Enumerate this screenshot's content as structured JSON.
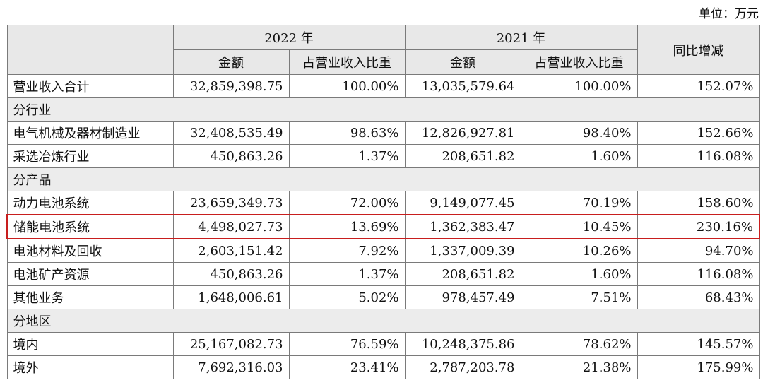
{
  "unit": "单位：万元",
  "header": {
    "year_2022": "2022 年",
    "year_2021": "2021 年",
    "yoy": "同比增减",
    "amount": "金额",
    "ratio": "占营业收入比重"
  },
  "rows": [
    {
      "type": "data",
      "label": "营业收入合计",
      "a22": "32,859,398.75",
      "r22": "100.00%",
      "a21": "13,035,579.64",
      "r21": "100.00%",
      "yoy": "152.07%"
    },
    {
      "type": "section",
      "label": "分行业"
    },
    {
      "type": "data",
      "label": "电气机械及器材制造业",
      "a22": "32,408,535.49",
      "r22": "98.63%",
      "a21": "12,826,927.81",
      "r21": "98.40%",
      "yoy": "152.66%"
    },
    {
      "type": "data",
      "label": "采选冶炼行业",
      "a22": "450,863.26",
      "r22": "1.37%",
      "a21": "208,651.82",
      "r21": "1.60%",
      "yoy": "116.08%"
    },
    {
      "type": "section",
      "label": "分产品"
    },
    {
      "type": "data",
      "label": "动力电池系统",
      "a22": "23,659,349.73",
      "r22": "72.00%",
      "a21": "9,149,077.45",
      "r21": "70.19%",
      "yoy": "158.60%"
    },
    {
      "type": "data",
      "label": "储能电池系统",
      "a22": "4,498,027.73",
      "r22": "13.69%",
      "a21": "1,362,383.47",
      "r21": "10.45%",
      "yoy": "230.16%",
      "highlight": true
    },
    {
      "type": "data",
      "label": "电池材料及回收",
      "a22": "2,603,151.42",
      "r22": "7.92%",
      "a21": "1,337,009.39",
      "r21": "10.26%",
      "yoy": "94.70%"
    },
    {
      "type": "data",
      "label": "电池矿产资源",
      "a22": "450,863.26",
      "r22": "1.37%",
      "a21": "208,651.82",
      "r21": "1.60%",
      "yoy": "116.08%"
    },
    {
      "type": "data",
      "label": "其他业务",
      "a22": "1,648,006.61",
      "r22": "5.02%",
      "a21": "978,457.49",
      "r21": "7.51%",
      "yoy": "68.43%"
    },
    {
      "type": "section",
      "label": "分地区"
    },
    {
      "type": "data",
      "label": "境内",
      "a22": "25,167,082.73",
      "r22": "76.59%",
      "a21": "10,248,375.86",
      "r21": "78.62%",
      "yoy": "145.57%"
    },
    {
      "type": "data",
      "label": "境外",
      "a22": "7,692,316.03",
      "r22": "23.41%",
      "a21": "2,787,203.78",
      "r21": "21.38%",
      "yoy": "175.99%"
    }
  ],
  "colors": {
    "highlight_border": "#c81e1e",
    "header_bg": "#e8e8e8"
  }
}
